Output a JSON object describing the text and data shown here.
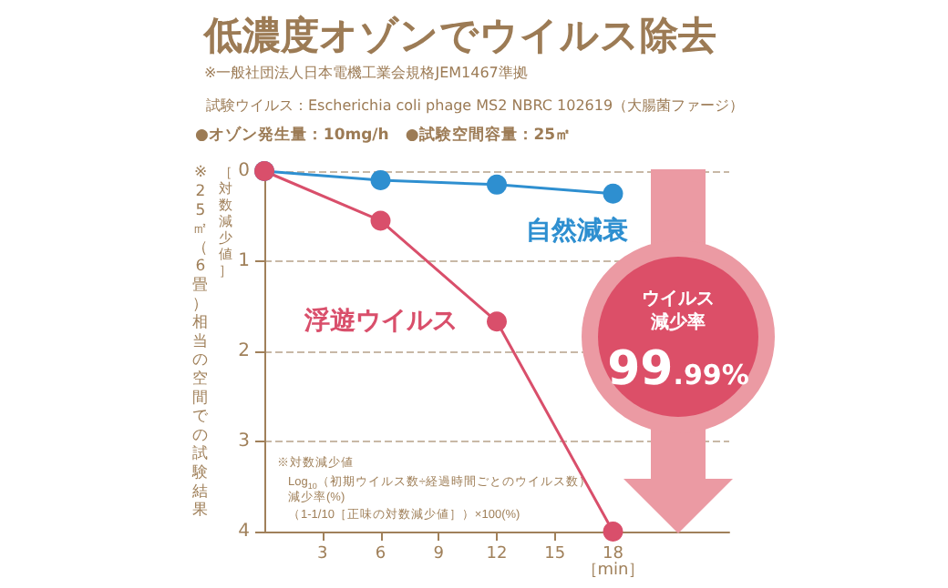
{
  "chart_data": {
    "type": "line",
    "title": "低濃度オゾンでウイルス除去",
    "subtitle": "※一般社団法人日本電機工業会規格JEM1467準拠",
    "ylabel": "［対数減少値］",
    "xlabel": "［min］",
    "x": [
      0,
      6,
      12,
      18
    ],
    "series": [
      {
        "name": "自然減衰",
        "color": "#2e8fd0",
        "values": [
          0,
          0.1,
          0.15,
          0.25
        ]
      },
      {
        "name": "浮遊ウイルス",
        "color": "#d94f6b",
        "values": [
          0,
          0.55,
          1.67,
          4
        ]
      }
    ],
    "xlim": [
      0,
      24
    ],
    "xticks": [
      3,
      6,
      9,
      12,
      15,
      18
    ],
    "ylim": [
      4,
      0
    ],
    "yticks": [
      0,
      1,
      2,
      3,
      4
    ],
    "grid": "y",
    "marker": "circle",
    "line_style": "solid",
    "legend": false,
    "annotations": [
      "※25㎡（6畳）相当の空間での試験結果",
      "ウイルス",
      "減少率",
      "99.99%",
      "※対数減少値",
      "Log$_{10}$（初期ウイルス数÷経過時間ごとのウイルス数）",
      "減少率(%)",
      "（1-1/10［正味の対数減少値］）×100(%)",
      "試験ウイルス：Escherichia coli phage MS2 NBRC 102619（大腸菌ファージ）",
      "●オゾン発生量：10mg/h　●試験空間容量：25㎡"
    ]
  }
}
